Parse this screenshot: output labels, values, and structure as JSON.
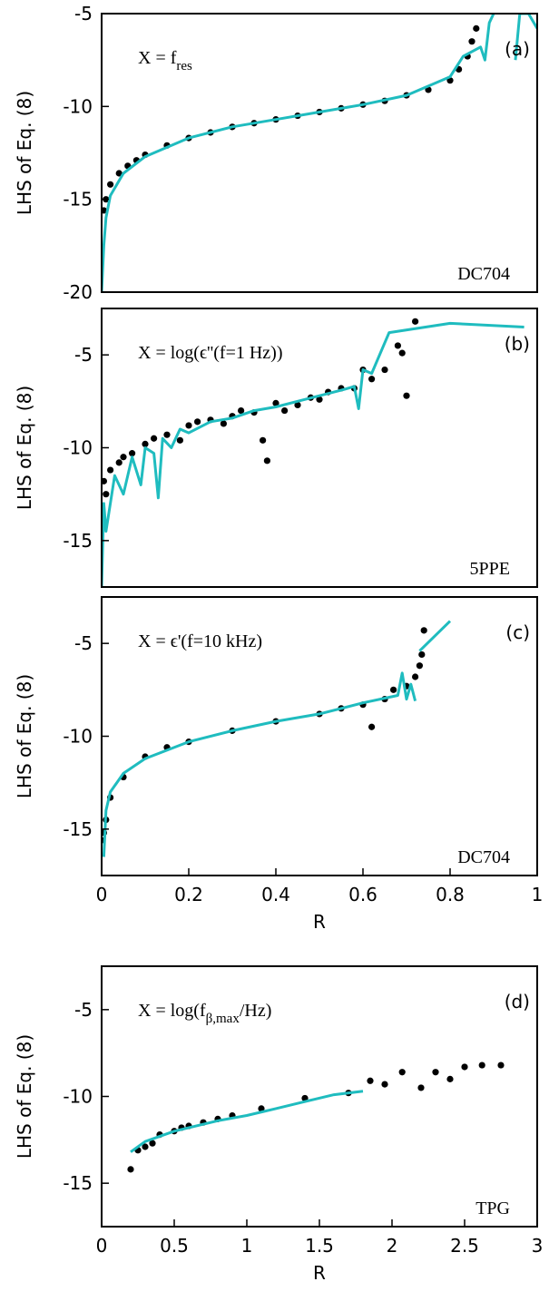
{
  "chart_data": [
    {
      "type": "scatter-line",
      "panel_label": "(a)",
      "sample": "DC704",
      "annotation": [
        "X = f",
        "res"
      ],
      "ylabel": "LHS of Eq. (8)",
      "xlim": [
        0,
        1
      ],
      "ylim": [
        -20,
        -5
      ],
      "yticks": [
        -20,
        -15,
        -10,
        -5
      ],
      "series": [
        {
          "kind": "points",
          "color": "#000000",
          "x": [
            0.005,
            0.01,
            0.02,
            0.04,
            0.06,
            0.08,
            0.1,
            0.15,
            0.2,
            0.25,
            0.3,
            0.35,
            0.4,
            0.45,
            0.5,
            0.55,
            0.6,
            0.65,
            0.7,
            0.75,
            0.8,
            0.82,
            0.84,
            0.85,
            0.86
          ],
          "values": [
            -15.6,
            -15,
            -14.2,
            -13.6,
            -13.2,
            -12.9,
            -12.6,
            -12.1,
            -11.7,
            -11.4,
            -11.1,
            -10.9,
            -10.7,
            -10.5,
            -10.3,
            -10.1,
            -9.9,
            -9.7,
            -9.4,
            -9.1,
            -8.6,
            -8.0,
            -7.3,
            -6.5,
            -5.8
          ]
        },
        {
          "kind": "line",
          "color": "#1fbcbf",
          "x": [
            0,
            0.005,
            0.01,
            0.02,
            0.05,
            0.1,
            0.2,
            0.3,
            0.4,
            0.5,
            0.6,
            0.7,
            0.8,
            0.83,
            0.87,
            0.88,
            0.89,
            0.9,
            0.92,
            0.95,
            0.96,
            0.98,
            1
          ],
          "values": [
            -20,
            -17.5,
            -16,
            -14.8,
            -13.6,
            -12.7,
            -11.7,
            -11.1,
            -10.7,
            -10.3,
            -9.9,
            -9.4,
            -8.4,
            -7.3,
            -6.8,
            -7.5,
            -5.5,
            -5,
            null,
            -7.5,
            -5,
            -5,
            -5.8
          ]
        }
      ]
    },
    {
      "type": "scatter-line",
      "panel_label": "(b)",
      "sample": "5PPE",
      "annotation": [
        "X = log(ϵ''(f=1 Hz))"
      ],
      "ylabel": "LHS of Eq. (8)",
      "xlim": [
        0,
        1
      ],
      "ylim": [
        -17.5,
        -2.5
      ],
      "yticks": [
        -15,
        -10,
        -5
      ],
      "series": [
        {
          "kind": "points",
          "color": "#000000",
          "x": [
            0.005,
            0.01,
            0.02,
            0.04,
            0.05,
            0.07,
            0.1,
            0.12,
            0.15,
            0.18,
            0.2,
            0.22,
            0.25,
            0.28,
            0.3,
            0.32,
            0.35,
            0.37,
            0.38,
            0.4,
            0.42,
            0.45,
            0.48,
            0.5,
            0.52,
            0.55,
            0.58,
            0.6,
            0.62,
            0.65,
            0.68,
            0.69,
            0.7,
            0.72
          ],
          "values": [
            -11.8,
            -12.5,
            -11.2,
            -10.8,
            -10.5,
            -10.3,
            -9.8,
            -9.5,
            -9.3,
            -9.6,
            -8.8,
            -8.6,
            -8.5,
            -8.7,
            -8.3,
            -8.0,
            -8.1,
            -9.6,
            -10.7,
            -7.6,
            -8.0,
            -7.7,
            -7.3,
            -7.4,
            -7.0,
            -6.8,
            -6.8,
            -5.8,
            -6.3,
            -5.8,
            -4.5,
            -4.9,
            -7.2,
            -3.2
          ]
        },
        {
          "kind": "line",
          "color": "#1fbcbf",
          "x": [
            0,
            0.005,
            0.01,
            0.03,
            0.05,
            0.07,
            0.09,
            0.1,
            0.12,
            0.13,
            0.14,
            0.16,
            0.18,
            0.2,
            0.25,
            0.3,
            0.35,
            0.4,
            0.45,
            0.5,
            0.55,
            0.58,
            0.59,
            0.6,
            0.62,
            0.66,
            0.8,
            0.97
          ],
          "values": [
            -17.5,
            -13,
            -14.5,
            -11.5,
            -12.5,
            -10.5,
            -12,
            -10,
            -10.3,
            -12.7,
            -9.5,
            -10,
            -9,
            -9.2,
            -8.6,
            -8.4,
            -8.0,
            -7.8,
            -7.5,
            -7.2,
            -6.9,
            -6.7,
            -7.9,
            -5.8,
            -6.0,
            -3.8,
            -3.3,
            -3.5
          ]
        }
      ]
    },
    {
      "type": "scatter-line",
      "panel_label": "(c)",
      "sample": "DC704",
      "annotation": [
        "X = ϵ'(f=10 kHz)"
      ],
      "ylabel": "LHS of Eq. (8)",
      "xlabel": "R",
      "xlim": [
        0,
        1
      ],
      "xticks": [
        0,
        0.2,
        0.4,
        0.6,
        0.8,
        1
      ],
      "ylim": [
        -17.5,
        -2.5
      ],
      "yticks": [
        -15,
        -10,
        -5
      ],
      "series": [
        {
          "kind": "points",
          "color": "#000000",
          "x": [
            0,
            0.005,
            0.01,
            0.02,
            0.05,
            0.1,
            0.15,
            0.2,
            0.3,
            0.4,
            0.5,
            0.55,
            0.6,
            0.62,
            0.65,
            0.67,
            0.7,
            0.72,
            0.73,
            0.735,
            0.74
          ],
          "values": [
            -15.6,
            -15.2,
            -14.5,
            -13.3,
            -12.2,
            -11.1,
            -10.6,
            -10.3,
            -9.7,
            -9.2,
            -8.8,
            -8.5,
            -8.3,
            -9.5,
            -8.0,
            -7.5,
            -7.3,
            -6.8,
            -6.2,
            -5.6,
            -4.3
          ]
        },
        {
          "kind": "line",
          "color": "#1fbcbf",
          "x": [
            0.005,
            0.01,
            0.02,
            0.05,
            0.1,
            0.2,
            0.3,
            0.4,
            0.5,
            0.6,
            0.68,
            0.69,
            0.7,
            0.71,
            0.72,
            0.725,
            0.73,
            0.8
          ],
          "values": [
            -16.5,
            -14,
            -13,
            -12,
            -11.2,
            -10.3,
            -9.7,
            -9.2,
            -8.8,
            -8.2,
            -7.8,
            -6.6,
            -8.0,
            -7.2,
            -8.1,
            null,
            -5.4,
            -3.8
          ]
        }
      ]
    },
    {
      "type": "scatter-line",
      "panel_label": "(d)",
      "sample": "TPG",
      "annotation": [
        "X = log(f",
        "β,max",
        "/Hz)"
      ],
      "ylabel": "LHS of Eq. (8)",
      "xlabel": "R",
      "xlim": [
        0,
        3
      ],
      "xticks": [
        0,
        0.5,
        1,
        1.5,
        2,
        2.5,
        3
      ],
      "ylim": [
        -17.5,
        -2.5
      ],
      "yticks": [
        -15,
        -10,
        -5
      ],
      "series": [
        {
          "kind": "points",
          "color": "#000000",
          "x": [
            0.2,
            0.25,
            0.3,
            0.35,
            0.4,
            0.5,
            0.55,
            0.6,
            0.7,
            0.8,
            0.9,
            1.1,
            1.4,
            1.7,
            1.85,
            1.95,
            2.07,
            2.2,
            2.3,
            2.4,
            2.5,
            2.62,
            2.75
          ],
          "values": [
            -14.2,
            -13.1,
            -12.9,
            -12.7,
            -12.2,
            -12.0,
            -11.8,
            -11.7,
            -11.5,
            -11.3,
            -11.1,
            -10.7,
            -10.1,
            -9.8,
            -9.1,
            -9.3,
            -8.6,
            -9.5,
            -8.6,
            -9.0,
            -8.3,
            -8.2,
            -8.2
          ]
        },
        {
          "kind": "line",
          "color": "#1fbcbf",
          "x": [
            0.2,
            0.3,
            0.5,
            0.8,
            1.0,
            1.2,
            1.4,
            1.6,
            1.8
          ],
          "values": [
            -13.2,
            -12.6,
            -12.0,
            -11.4,
            -11.1,
            -10.7,
            -10.3,
            -9.9,
            -9.7
          ]
        }
      ]
    }
  ]
}
